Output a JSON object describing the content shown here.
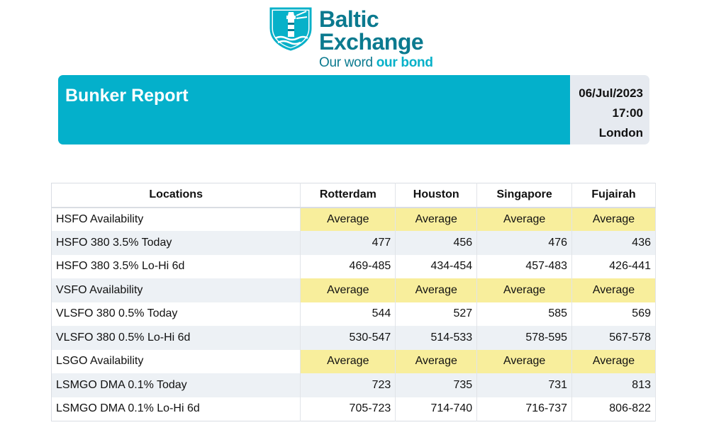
{
  "logo": {
    "line1": "Baltic",
    "line2": "Exchange",
    "tagline_plain": "Our word ",
    "tagline_bold": "our bond"
  },
  "banner": {
    "title": "Bunker Report",
    "date": "06/Jul/2023",
    "time": "17:00",
    "place": "London"
  },
  "colors": {
    "brand_teal": "#04b0cb",
    "logo_dark": "#0b7a8f",
    "availability_highlight": "#f8ee9c",
    "meta_bg": "#e6eaf0"
  },
  "table": {
    "headers": [
      "Locations",
      "Rotterdam",
      "Houston",
      "Singapore",
      "Fujairah"
    ],
    "rows": [
      {
        "label": "HSFO Availability",
        "values": [
          "Average",
          "Average",
          "Average",
          "Average"
        ]
      },
      {
        "label": "HSFO 380 3.5% Today",
        "values": [
          "477",
          "456",
          "476",
          "436"
        ]
      },
      {
        "label": "HSFO 380 3.5% Lo-Hi 6d",
        "values": [
          "469-485",
          "434-454",
          "457-483",
          "426-441"
        ]
      },
      {
        "label": "VSFO Availability",
        "values": [
          "Average",
          "Average",
          "Average",
          "Average"
        ]
      },
      {
        "label": "VLSFO 380 0.5% Today",
        "values": [
          "544",
          "527",
          "585",
          "569"
        ]
      },
      {
        "label": "VLSFO 380 0.5% Lo-Hi 6d",
        "values": [
          "530-547",
          "514-533",
          "578-595",
          "567-578"
        ]
      },
      {
        "label": "LSGO Availability",
        "values": [
          "Average",
          "Average",
          "Average",
          "Average"
        ]
      },
      {
        "label": "LSMGO DMA 0.1% Today",
        "values": [
          "723",
          "735",
          "731",
          "813"
        ]
      },
      {
        "label": "LSMGO DMA 0.1% Lo-Hi 6d",
        "values": [
          "705-723",
          "714-740",
          "716-737",
          "806-822"
        ]
      }
    ]
  }
}
